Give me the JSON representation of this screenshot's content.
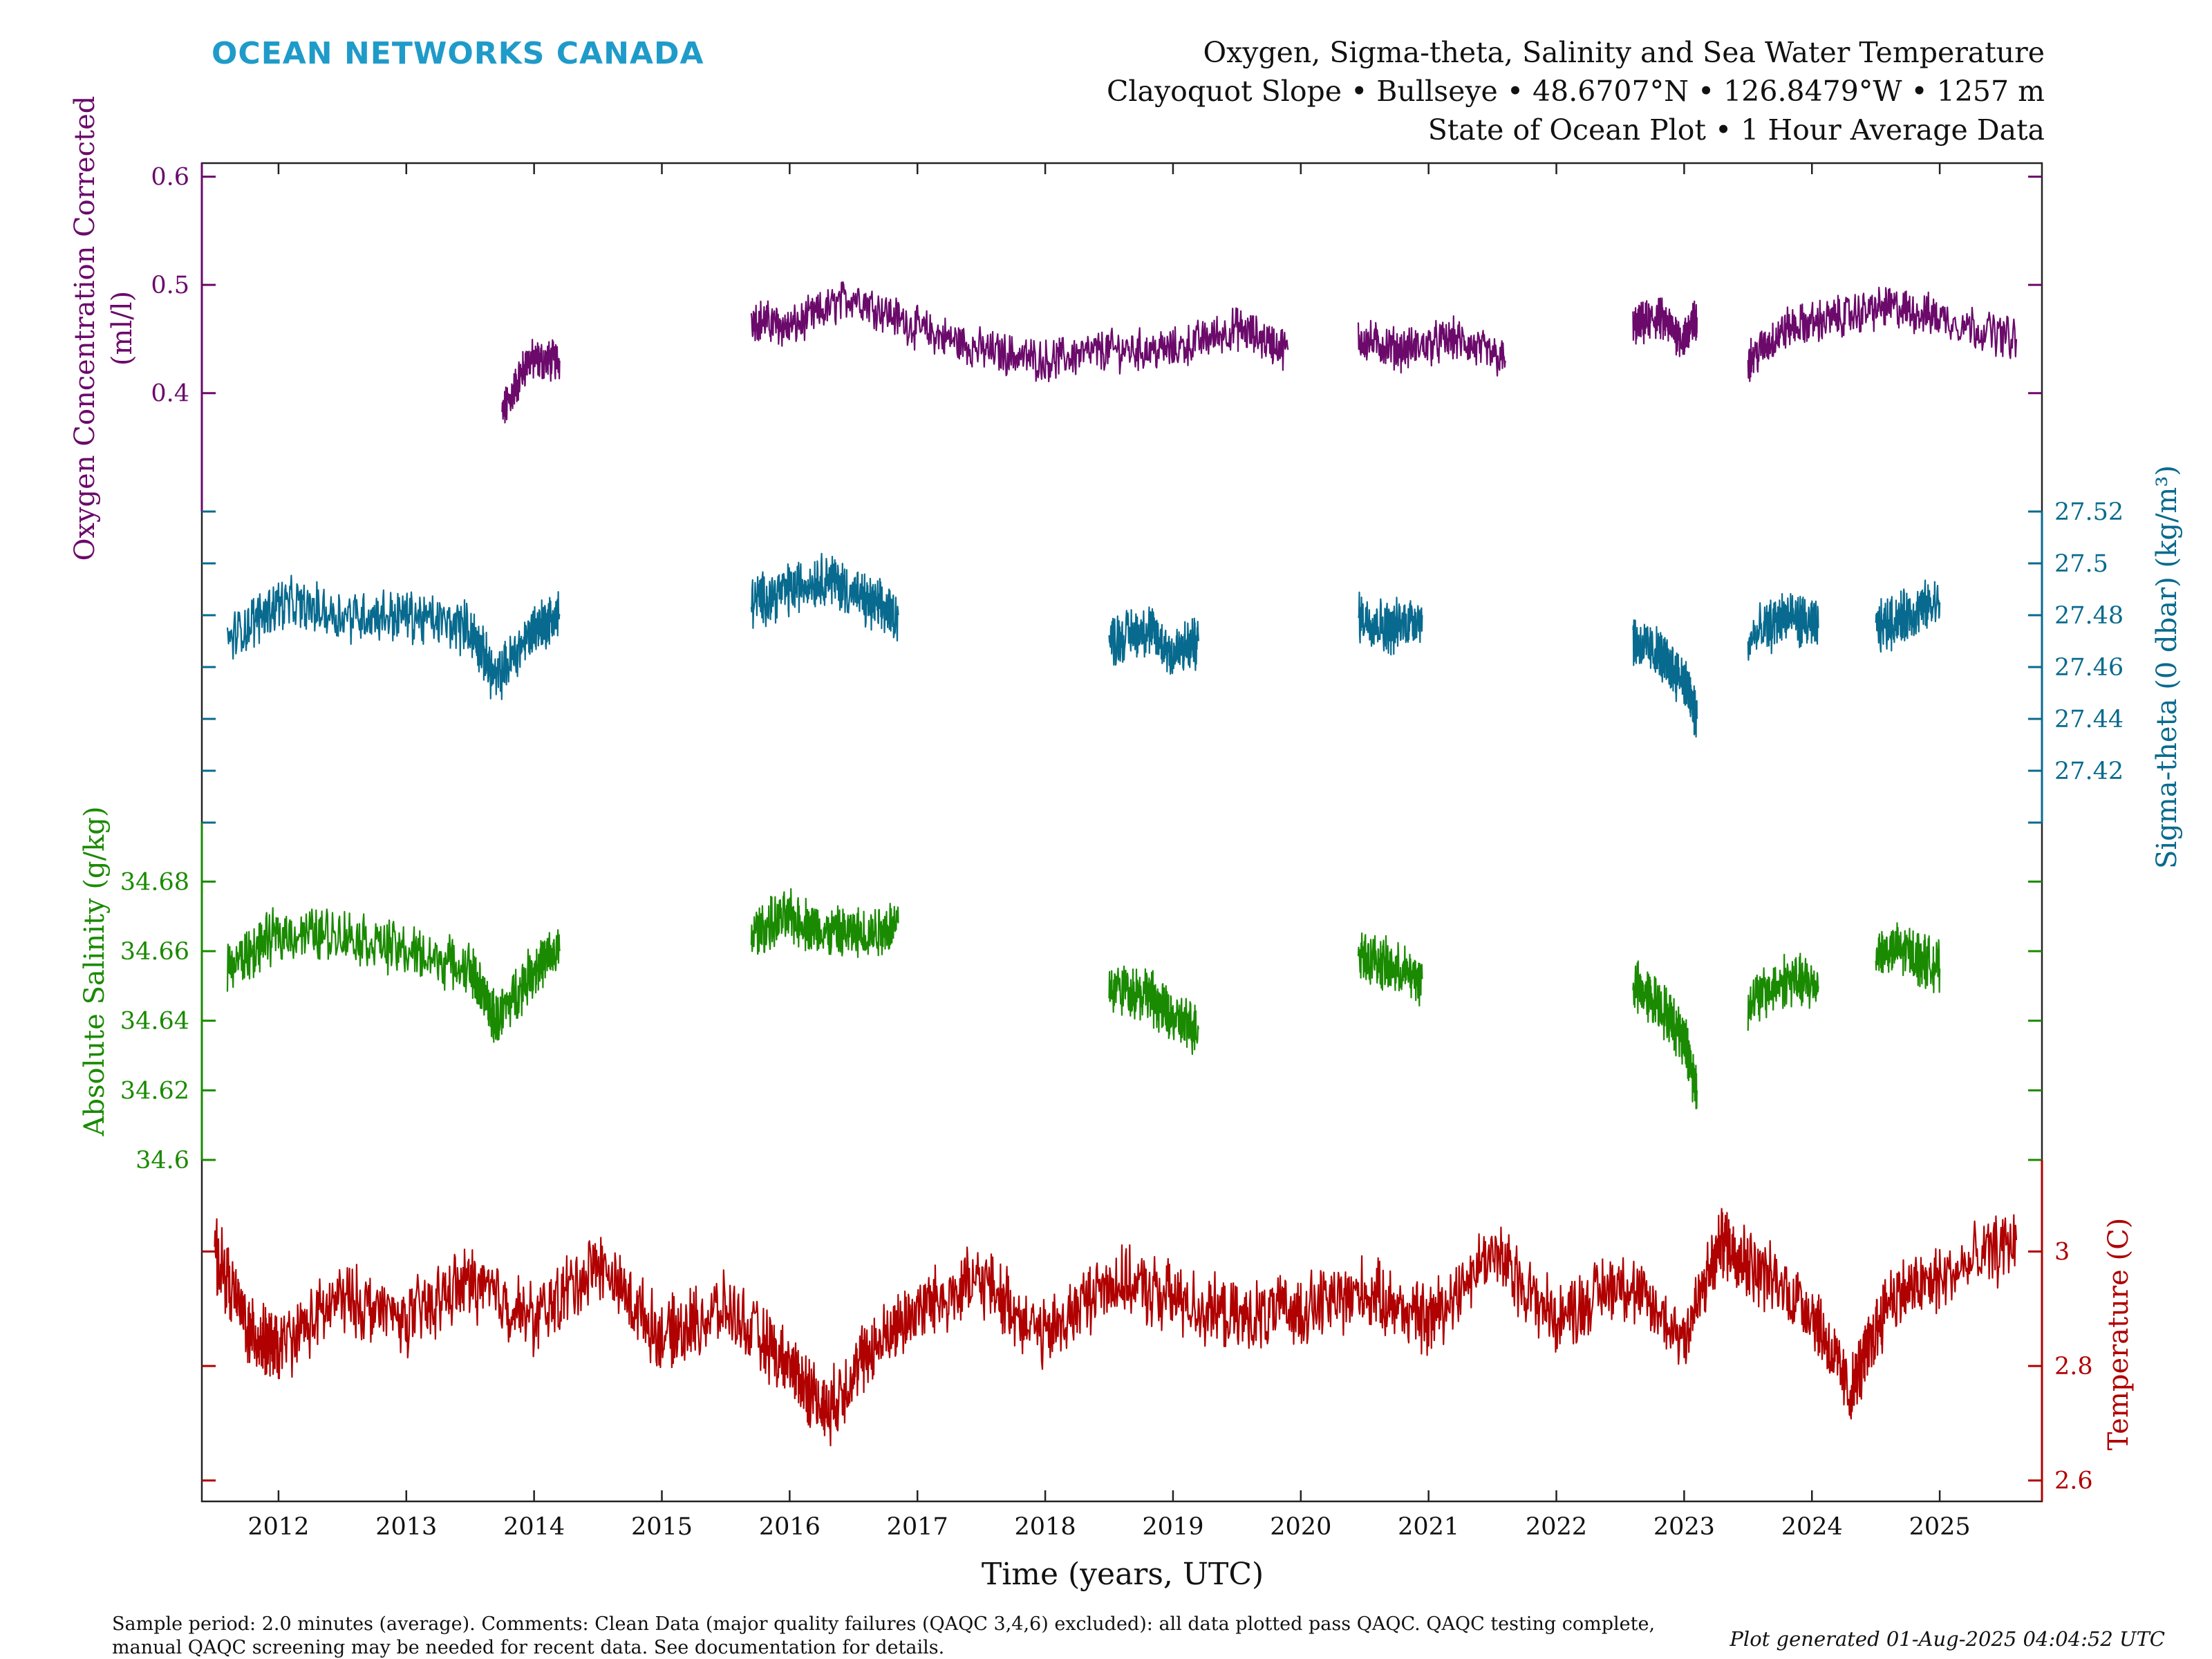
{
  "brand": "OCEAN NETWORKS CANADA",
  "colors": {
    "brand": "#1f9bc9",
    "oxygen": "#6b0a6b",
    "sigma": "#086a8e",
    "salinity": "#1a8a00",
    "temperature": "#b00000",
    "axis": "#222222"
  },
  "title_lines": [
    "Oxygen, Sigma-theta, Salinity and Sea Water Temperature",
    "Clayoquot Slope • Bullseye • 48.6707°N • 126.8479°W • 1257 m",
    "State of Ocean Plot • 1 Hour Average Data"
  ],
  "footnote_lines": [
    "Sample period: 2.0 minutes (average). Comments: Clean Data (major quality failures (QAQC 3,4,6) excluded): all data plotted pass QAQC. QAQC testing complete,",
    "manual QAQC screening may be needed for recent data. See documentation for details."
  ],
  "plot_generated": "Plot generated 01-Aug-2025 04:04:52 UTC",
  "chart_data": {
    "type": "line",
    "xlabel": "Time (years, UTC)",
    "xlim": [
      2011.4,
      2025.8
    ],
    "xticks": [
      "2012",
      "2013",
      "2014",
      "2015",
      "2016",
      "2017",
      "2018",
      "2019",
      "2020",
      "2021",
      "2022",
      "2023",
      "2024",
      "2025"
    ],
    "grid": false,
    "legend": "none",
    "series": [
      {
        "name": "oxygen",
        "ylabel_line1": "Oxygen Concentration Corrected",
        "ylabel_line2": "(ml/l)",
        "axis_side": "left",
        "ylim": [
          0.38,
          0.61
        ],
        "ticks": [
          "0.4",
          "0.5",
          "0.6"
        ],
        "unit": "ml/l",
        "segments": [
          {
            "x": [
              2013.75,
              2013.95,
              2014.2
            ],
            "y": [
              0.38,
              0.43,
              0.43
            ]
          },
          {
            "x": [
              2015.7,
              2016.0,
              2016.5,
              2017.0,
              2017.5,
              2018.0,
              2018.5,
              2019.0,
              2019.5,
              2019.9
            ],
            "y": [
              0.47,
              0.46,
              0.49,
              0.46,
              0.44,
              0.43,
              0.44,
              0.44,
              0.46,
              0.44
            ]
          },
          {
            "x": [
              2020.45,
              2020.8,
              2021.2,
              2021.6
            ],
            "y": [
              0.45,
              0.44,
              0.45,
              0.43
            ]
          },
          {
            "x": [
              2022.6,
              2022.8,
              2023.0,
              2023.1
            ],
            "y": [
              0.46,
              0.47,
              0.45,
              0.47
            ]
          },
          {
            "x": [
              2023.5,
              2023.8,
              2024.2,
              2024.6,
              2025.0,
              2025.6
            ],
            "y": [
              0.43,
              0.46,
              0.47,
              0.48,
              0.47,
              0.45
            ]
          }
        ]
      },
      {
        "name": "sigma-theta",
        "ylabel": "Sigma-theta (0 dbar) (kg/m³)",
        "axis_side": "right",
        "ylim": [
          27.4,
          27.52
        ],
        "ticks": [
          "27.42",
          "27.44",
          "27.46",
          "27.48",
          "27.5",
          "27.52"
        ],
        "unit": "kg/m³",
        "segments": [
          {
            "x": [
              2011.6,
              2012.0,
              2012.5,
              2013.0,
              2013.5,
              2013.7,
              2014.0,
              2014.2
            ],
            "y": [
              27.47,
              27.485,
              27.48,
              27.48,
              27.475,
              27.455,
              27.475,
              27.48
            ]
          },
          {
            "x": [
              2015.7,
              2016.0,
              2016.3,
              2016.6,
              2016.85
            ],
            "y": [
              27.485,
              27.49,
              27.495,
              27.485,
              27.48
            ]
          },
          {
            "x": [
              2018.5,
              2018.8,
              2019.0,
              2019.2
            ],
            "y": [
              27.47,
              27.475,
              27.465,
              27.47
            ]
          },
          {
            "x": [
              2020.45,
              2020.7,
              2020.95
            ],
            "y": [
              27.48,
              27.475,
              27.48
            ]
          },
          {
            "x": [
              2022.6,
              2022.8,
              2023.0,
              2023.1
            ],
            "y": [
              27.47,
              27.465,
              27.455,
              27.44
            ]
          },
          {
            "x": [
              2023.5,
              2023.8,
              2024.05
            ],
            "y": [
              27.47,
              27.48,
              27.475
            ]
          },
          {
            "x": [
              2024.5,
              2024.75,
              2025.0
            ],
            "y": [
              27.475,
              27.48,
              27.485
            ]
          }
        ]
      },
      {
        "name": "salinity",
        "ylabel": "Absolute Salinity (g/kg)",
        "axis_side": "left",
        "ylim": [
          34.6,
          34.69
        ],
        "ticks": [
          "34.6",
          "34.62",
          "34.64",
          "34.66",
          "34.68"
        ],
        "unit": "g/kg",
        "segments": [
          {
            "x": [
              2011.6,
              2012.0,
              2012.5,
              2013.0,
              2013.5,
              2013.7,
              2014.0,
              2014.2
            ],
            "y": [
              34.655,
              34.665,
              34.665,
              34.66,
              34.655,
              34.64,
              34.655,
              34.66
            ]
          },
          {
            "x": [
              2015.7,
              2016.0,
              2016.3,
              2016.6,
              2016.85
            ],
            "y": [
              34.665,
              34.67,
              34.665,
              34.665,
              34.668
            ]
          },
          {
            "x": [
              2018.5,
              2018.8,
              2019.0,
              2019.2
            ],
            "y": [
              34.65,
              34.648,
              34.64,
              34.638
            ]
          },
          {
            "x": [
              2020.45,
              2020.7,
              2020.95
            ],
            "y": [
              34.66,
              34.655,
              34.652
            ]
          },
          {
            "x": [
              2022.6,
              2022.8,
              2023.0,
              2023.1
            ],
            "y": [
              34.65,
              34.645,
              34.635,
              34.62
            ]
          },
          {
            "x": [
              2023.5,
              2023.8,
              2024.05
            ],
            "y": [
              34.645,
              34.652,
              34.65
            ]
          },
          {
            "x": [
              2024.5,
              2024.75,
              2025.0
            ],
            "y": [
              34.66,
              34.66,
              34.655
            ]
          }
        ]
      },
      {
        "name": "temperature",
        "ylabel": "Temperature (C)",
        "axis_side": "right",
        "ylim": [
          2.59,
          3.16
        ],
        "ticks": [
          "2.6",
          "2.8",
          "3"
        ],
        "unit": "C",
        "segments": [
          {
            "x": [
              2011.5,
              2011.8,
              2012.0,
              2012.5,
              2013.0,
              2013.5,
              2014.0,
              2014.5,
              2015.0,
              2015.5,
              2016.0,
              2016.3,
              2016.6,
              2017.0,
              2017.5,
              2018.0,
              2018.5,
              2019.0,
              2019.5,
              2020.0,
              2020.5,
              2021.0,
              2021.5,
              2022.0,
              2022.5,
              2023.0,
              2023.3,
              2023.5,
              2024.0,
              2024.3,
              2024.6,
              2025.0,
              2025.6
            ],
            "y": [
              3.0,
              2.85,
              2.83,
              2.92,
              2.88,
              2.95,
              2.88,
              2.98,
              2.85,
              2.9,
              2.8,
              2.72,
              2.82,
              2.9,
              2.95,
              2.85,
              2.95,
              2.92,
              2.88,
              2.9,
              2.93,
              2.88,
              3.0,
              2.88,
              2.95,
              2.85,
              3.02,
              2.98,
              2.9,
              2.75,
              2.92,
              2.95,
              3.02
            ]
          }
        ]
      }
    ]
  }
}
